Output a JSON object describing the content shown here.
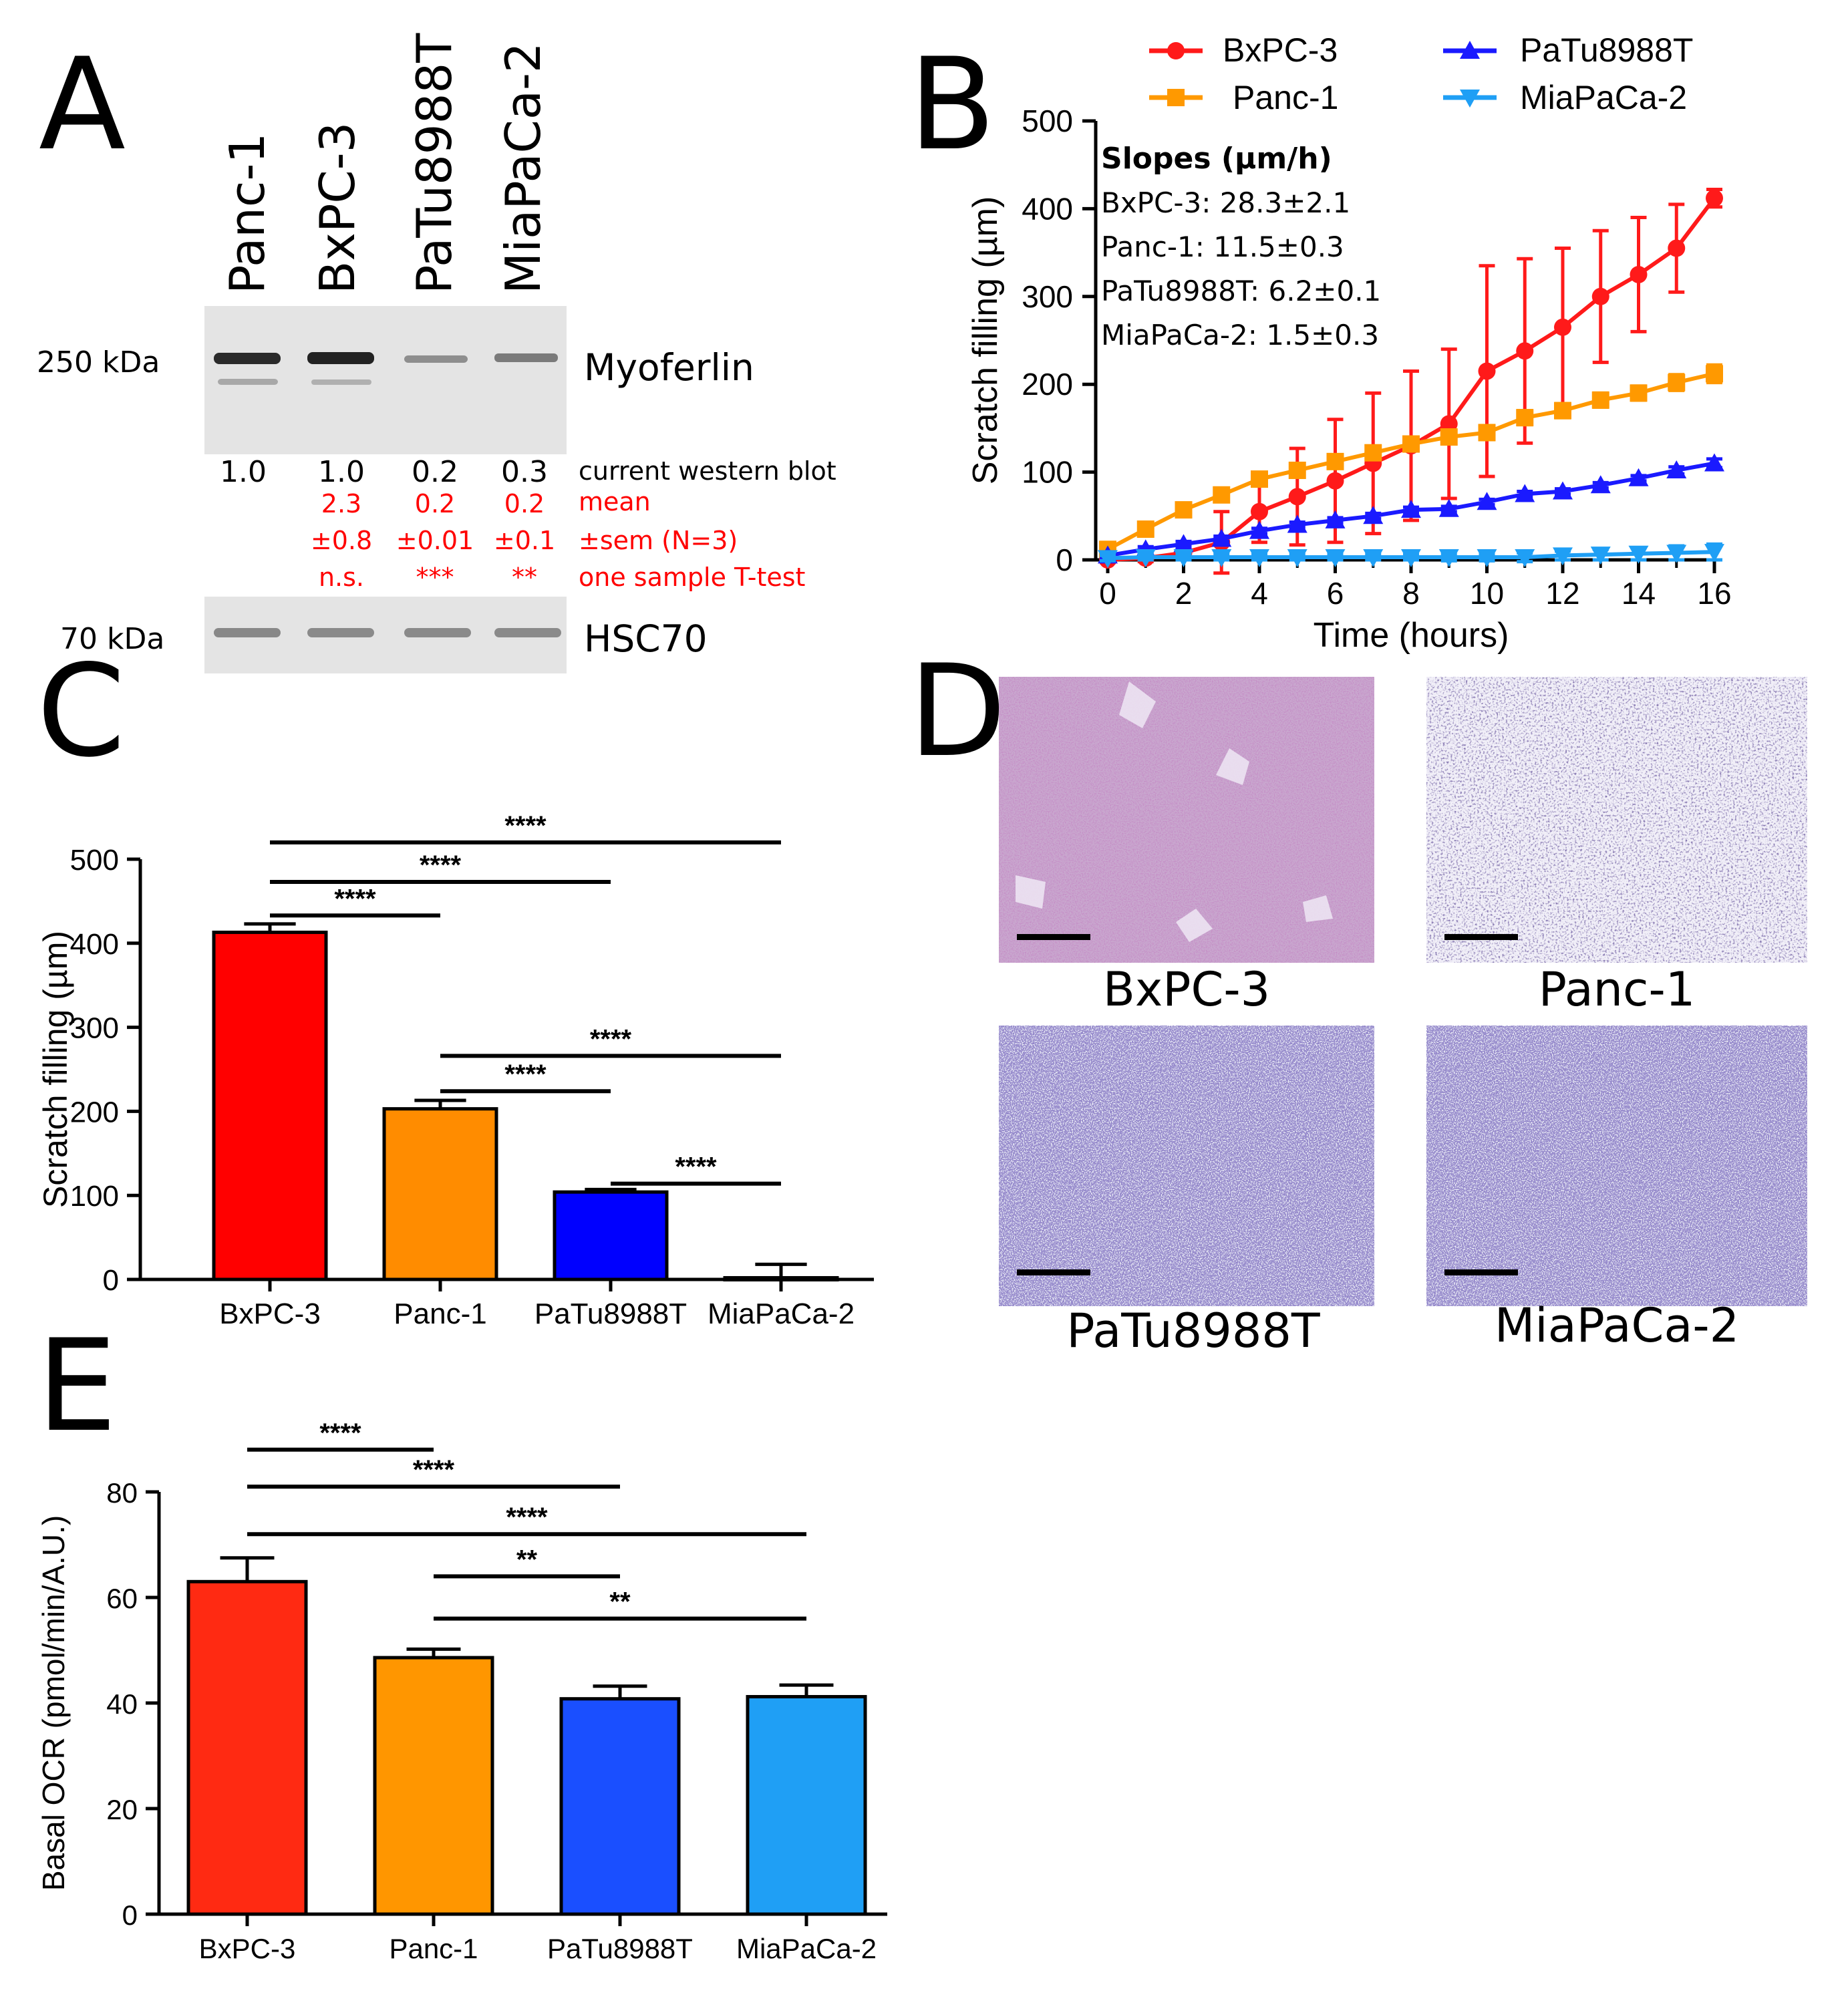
{
  "colors": {
    "bxpc3": "#ff1a1a",
    "panc1": "#ff9900",
    "patu": "#1a1aff",
    "miapaca": "#1f9ff5",
    "red_text": "#ff0000",
    "black": "#000000"
  },
  "panelA": {
    "letter": "A",
    "lanes": [
      "Panc-1",
      "BxPC-3",
      "PaTu8988T",
      "MiaPaCa-2"
    ],
    "mw_top": "250 kDa",
    "mw_bottom": "70 kDa",
    "protein_top": "Myoferlin",
    "protein_bottom": "HSC70",
    "current": [
      "1.0",
      "1.0",
      "0.2",
      "0.3"
    ],
    "current_label": "current western blot",
    "mean": [
      "2.3",
      "0.2",
      "0.2"
    ],
    "mean_label": "mean",
    "sem": [
      "±0.8",
      "±0.01",
      "±0.1"
    ],
    "sem_label": "±sem (N=3)",
    "ttest": [
      "n.s.",
      "***",
      "**"
    ],
    "ttest_label": "one sample T-test"
  },
  "panelB": {
    "letter": "B",
    "legend": [
      "BxPC-3",
      "Panc-1",
      "PaTu8988T",
      "MiaPaCa-2"
    ],
    "slopes_title": "Slopes (µm/h)",
    "slopes": [
      "BxPC-3: 28.3±2.1",
      "Panc-1: 11.5±0.3",
      "PaTu8988T: 6.2±0.1",
      "MiaPaCa-2: 1.5±0.3"
    ]
  },
  "panelD": {
    "letter": "D",
    "labels": [
      "BxPC-3",
      "Panc-1",
      "PaTu8988T",
      "MiaPaCa-2"
    ]
  },
  "chart_data": [
    {
      "id": "B",
      "type": "line",
      "title": "",
      "xlabel": "Time (hours)",
      "ylabel": "Scratch filling (µm)",
      "xlim": [
        0,
        16
      ],
      "ylim": [
        0,
        500
      ],
      "xticks": [
        0,
        2,
        4,
        6,
        8,
        10,
        12,
        14,
        16
      ],
      "yticks": [
        0,
        100,
        200,
        300,
        400,
        500
      ],
      "x": [
        0,
        1,
        2,
        3,
        4,
        5,
        6,
        7,
        8,
        9,
        10,
        11,
        12,
        13,
        14,
        15,
        16
      ],
      "series": [
        {
          "name": "BxPC-3",
          "marker": "circle",
          "values": [
            0,
            2,
            8,
            20,
            55,
            72,
            90,
            110,
            130,
            155,
            215,
            238,
            265,
            300,
            325,
            355,
            412
          ],
          "err": [
            3,
            4,
            8,
            35,
            35,
            55,
            70,
            80,
            85,
            85,
            120,
            105,
            90,
            75,
            65,
            50,
            10
          ]
        },
        {
          "name": "Panc-1",
          "marker": "square",
          "values": [
            12,
            35,
            57,
            74,
            92,
            102,
            112,
            122,
            132,
            140,
            145,
            162,
            170,
            182,
            190,
            202,
            212
          ],
          "err": [
            3,
            5,
            5,
            5,
            5,
            6,
            6,
            6,
            7,
            8,
            8,
            8,
            8,
            8,
            8,
            9,
            10
          ]
        },
        {
          "name": "PaTu8988T",
          "marker": "triangle-up",
          "values": [
            5,
            12,
            18,
            24,
            33,
            40,
            45,
            50,
            57,
            58,
            66,
            75,
            78,
            85,
            93,
            102,
            110
          ],
          "err": [
            3,
            3,
            3,
            3,
            3,
            3,
            3,
            3,
            3,
            3,
            3,
            3,
            3,
            3,
            3,
            4,
            5
          ]
        },
        {
          "name": "MiaPaCa-2",
          "marker": "triangle-down",
          "values": [
            2,
            3,
            3,
            3,
            3,
            3,
            3,
            3,
            3,
            3,
            3,
            3,
            5,
            6,
            7,
            8,
            9
          ],
          "err": [
            3,
            3,
            3,
            3,
            3,
            3,
            3,
            3,
            3,
            4,
            4,
            5,
            5,
            6,
            7,
            8,
            9
          ]
        }
      ]
    },
    {
      "id": "C",
      "type": "bar",
      "title": "",
      "xlabel": "",
      "ylabel": "Scratch filling (µm)",
      "ylim": [
        0,
        500
      ],
      "yticks": [
        0,
        100,
        200,
        300,
        400,
        500
      ],
      "categories": [
        "BxPC-3",
        "Panc-1",
        "PaTu8988T",
        "MiaPaCa-2"
      ],
      "values": [
        413,
        203,
        104,
        2
      ],
      "err": [
        10,
        10,
        3,
        16
      ],
      "colors": [
        "#ff0000",
        "#ff8c00",
        "#0000ff",
        "#1f9ff5"
      ],
      "brackets": [
        {
          "from": 0,
          "to": 3,
          "y": 520,
          "label": "****"
        },
        {
          "from": 0,
          "to": 2,
          "y": 473,
          "label": "****"
        },
        {
          "from": 0,
          "to": 1,
          "y": 433,
          "label": "****"
        },
        {
          "from": 1,
          "to": 3,
          "y": 266,
          "label": "****"
        },
        {
          "from": 1,
          "to": 2,
          "y": 224,
          "label": "****"
        },
        {
          "from": 2,
          "to": 3,
          "y": 114,
          "label": "****"
        }
      ]
    },
    {
      "id": "E",
      "type": "bar",
      "title": "",
      "xlabel": "",
      "ylabel": "Basal OCR (pmol/min/A.U.)",
      "ylim": [
        0,
        80
      ],
      "yticks": [
        0,
        20,
        40,
        60,
        80
      ],
      "categories": [
        "BxPC-3",
        "Panc-1",
        "PaTu8988T",
        "MiaPaCa-2"
      ],
      "values": [
        63,
        48.6,
        40.8,
        41.2
      ],
      "err": [
        4.5,
        1.6,
        2.4,
        2.2
      ],
      "colors": [
        "#ff2a12",
        "#ff9600",
        "#1a4fff",
        "#1f9ff5"
      ],
      "brackets": [
        {
          "from": 0,
          "to": 1,
          "y": 88,
          "label": "****"
        },
        {
          "from": 0,
          "to": 2,
          "y": 81,
          "label": "****"
        },
        {
          "from": 0,
          "to": 3,
          "y": 72,
          "label": "****"
        },
        {
          "from": 1,
          "to": 2,
          "y": 64,
          "label": "**"
        },
        {
          "from": 1,
          "to": 3,
          "y": 56,
          "label": "**"
        }
      ]
    }
  ]
}
